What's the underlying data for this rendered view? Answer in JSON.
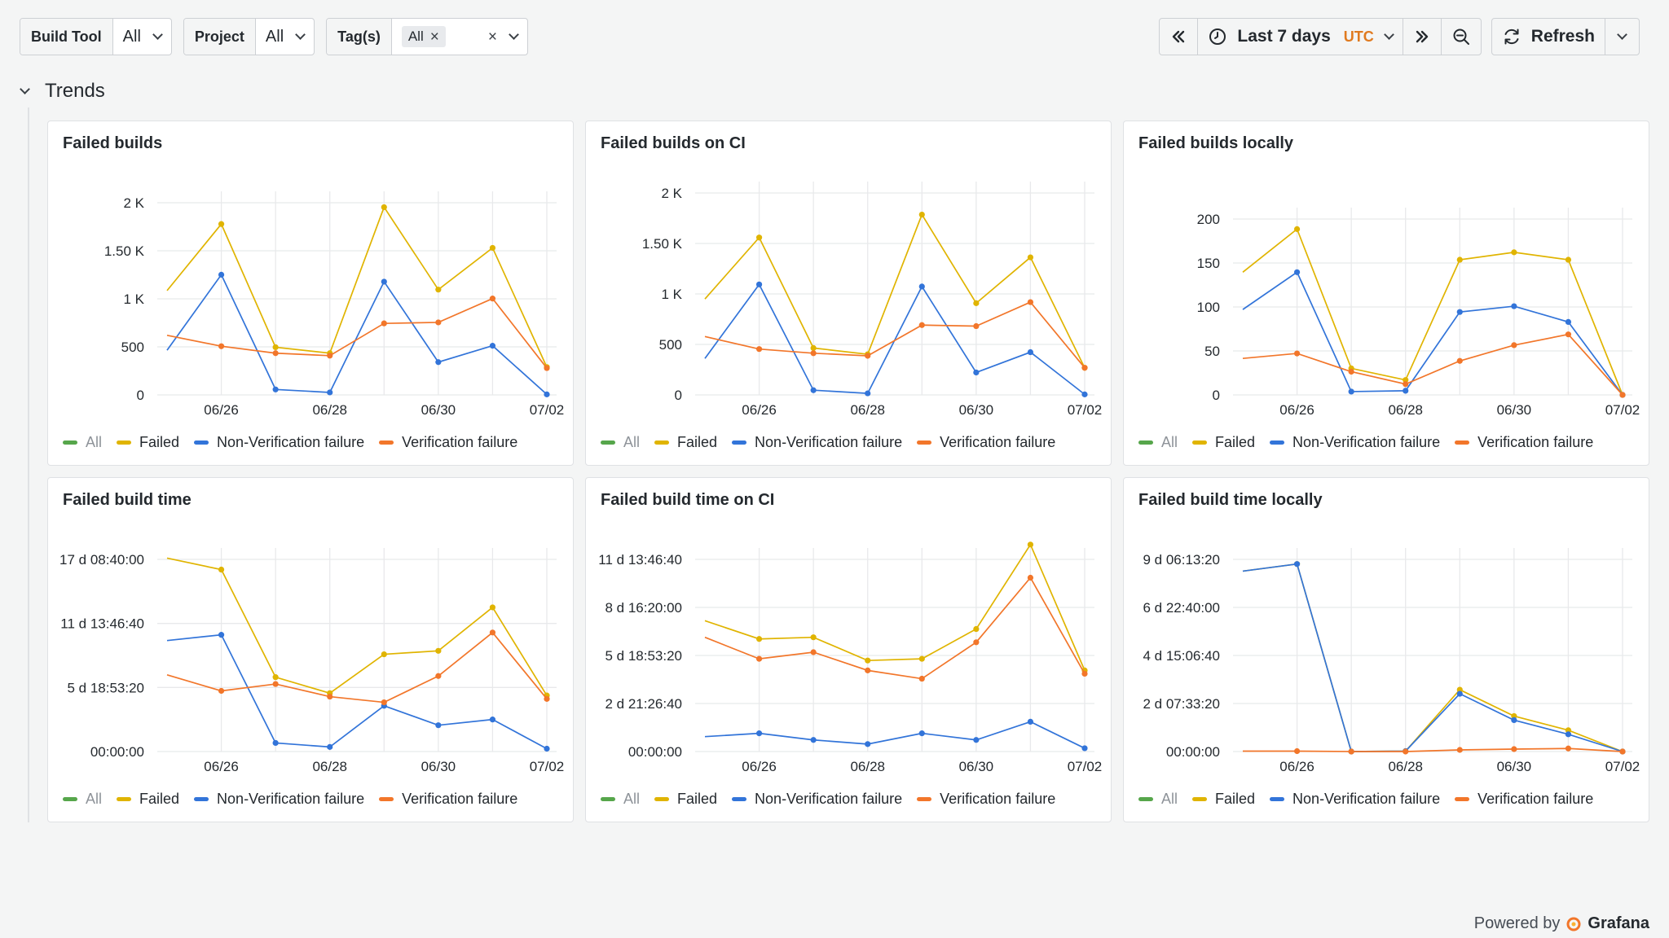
{
  "filters": [
    {
      "label": "Build Tool",
      "value": "All"
    },
    {
      "label": "Project",
      "value": "All"
    },
    {
      "label": "Tag(s)",
      "value": "All"
    }
  ],
  "timepicker": {
    "range": "Last 7 days",
    "tz": "UTC"
  },
  "refresh_label": "Refresh",
  "row_title": "Trends",
  "footer": {
    "powered": "Powered by",
    "brand": "Grafana"
  },
  "colors": {
    "all": "#56a64b",
    "failed": "#e0b400",
    "non_verification": "#3274d9",
    "verification": "#f2762a"
  },
  "legend": [
    "All",
    "Failed",
    "Non-Verification failure",
    "Verification failure"
  ],
  "chart_data": [
    {
      "type": "line",
      "title": "Failed builds",
      "x": [
        "06/25 12h",
        "06/26",
        "06/27",
        "06/28",
        "06/29",
        "06/30",
        "07/01",
        "07/02"
      ],
      "xticks": [
        "06/26",
        "06/28",
        "06/30",
        "07/02"
      ],
      "yticks": [
        "0",
        "500",
        "1 K",
        "1.50 K",
        "2 K"
      ],
      "ylim": [
        0,
        2000
      ],
      "series": [
        {
          "name": "Failed",
          "values": [
            1050,
            1720,
            480,
            420,
            1890,
            1060,
            1480,
            280
          ]
        },
        {
          "name": "Non-Verification failure",
          "values": [
            450,
            1210,
            55,
            25,
            1140,
            330,
            495,
            5
          ]
        },
        {
          "name": "Verification failure",
          "values": [
            600,
            490,
            420,
            395,
            720,
            730,
            970,
            270
          ]
        }
      ]
    },
    {
      "type": "line",
      "title": "Failed builds on CI",
      "x": [
        "06/25 12h",
        "06/26",
        "06/27",
        "06/28",
        "06/29",
        "06/30",
        "07/01",
        "07/02"
      ],
      "xticks": [
        "06/26",
        "06/28",
        "06/30",
        "07/02"
      ],
      "yticks": [
        "0",
        "500",
        "1 K",
        "1.50 K",
        "2 K"
      ],
      "ylim": [
        0,
        2000
      ],
      "series": [
        {
          "name": "Failed",
          "values": [
            920,
            1510,
            450,
            390,
            1730,
            880,
            1320,
            260
          ]
        },
        {
          "name": "Non-Verification failure",
          "values": [
            350,
            1060,
            45,
            15,
            1040,
            215,
            410,
            5
          ]
        },
        {
          "name": "Verification failure",
          "values": [
            560,
            440,
            400,
            375,
            670,
            660,
            890,
            260
          ]
        }
      ]
    },
    {
      "type": "line",
      "title": "Failed builds locally",
      "x": [
        "06/25 12h",
        "06/26",
        "06/27",
        "06/28",
        "06/29",
        "06/30",
        "07/01",
        "07/02"
      ],
      "xticks": [
        "06/26",
        "06/28",
        "06/30",
        "07/02"
      ],
      "yticks": [
        "0",
        "50",
        "100",
        "150",
        "200"
      ],
      "ylim": [
        0,
        220
      ],
      "series": [
        {
          "name": "Failed",
          "values": [
            148,
            200,
            32,
            18,
            163,
            172,
            163,
            0
          ]
        },
        {
          "name": "Non-Verification failure",
          "values": [
            103,
            148,
            4,
            5,
            100,
            107,
            88,
            0
          ]
        },
        {
          "name": "Verification failure",
          "values": [
            44,
            50,
            28,
            13,
            41,
            60,
            73,
            0
          ]
        }
      ]
    },
    {
      "type": "line",
      "title": "Failed build time",
      "x": [
        "06/25 12h",
        "06/26",
        "06/27",
        "06/28",
        "06/29",
        "06/30",
        "07/01",
        "07/02"
      ],
      "xticks": [
        "06/26",
        "06/28",
        "06/30",
        "07/02"
      ],
      "yticks": [
        "00:00:00",
        "5 d 18:53:20",
        "11 d 13:46:40",
        "17 d 08:40:00"
      ],
      "ylim": [
        0,
        17.3611
      ],
      "series": [
        {
          "name": "Failed",
          "values": [
            16.9,
            15.9,
            6.5,
            5.1,
            8.5,
            8.8,
            12.6,
            4.9
          ]
        },
        {
          "name": "Non-Verification failure",
          "values": [
            9.7,
            10.2,
            0.75,
            0.4,
            4.0,
            2.3,
            2.8,
            0.25
          ]
        },
        {
          "name": "Verification failure",
          "values": [
            6.7,
            5.3,
            5.9,
            4.8,
            4.3,
            6.6,
            10.4,
            4.6
          ]
        }
      ]
    },
    {
      "type": "line",
      "title": "Failed build time on CI",
      "x": [
        "06/25 12h",
        "06/26",
        "06/27",
        "06/28",
        "06/29",
        "06/30",
        "07/01",
        "07/02"
      ],
      "xticks": [
        "06/26",
        "06/28",
        "06/30",
        "07/02"
      ],
      "yticks": [
        "00:00:00",
        "2 d 21:26:40",
        "5 d 18:53:20",
        "8 d 16:20:00",
        "11 d 13:46:40"
      ],
      "ylim": [
        0,
        12.0
      ],
      "series": [
        {
          "name": "Failed",
          "values": [
            7.9,
            6.8,
            6.9,
            5.5,
            5.6,
            7.4,
            12.5,
            4.9
          ]
        },
        {
          "name": "Non-Verification failure",
          "values": [
            0.9,
            1.1,
            0.7,
            0.45,
            1.1,
            0.7,
            1.8,
            0.2
          ]
        },
        {
          "name": "Verification failure",
          "values": [
            6.9,
            5.6,
            6.0,
            4.9,
            4.4,
            6.6,
            10.5,
            4.7
          ]
        }
      ]
    },
    {
      "type": "line",
      "title": "Failed build time locally",
      "x": [
        "06/25 12h",
        "06/26",
        "06/27",
        "06/28",
        "06/29",
        "06/30",
        "07/01",
        "07/02"
      ],
      "xticks": [
        "06/26",
        "06/28",
        "06/30",
        "07/02"
      ],
      "yticks": [
        "00:00:00",
        "2 d 07:33:20",
        "4 d 15:06:40",
        "6 d 22:40:00",
        "9 d 06:13:20"
      ],
      "ylim": [
        0,
        9.8
      ],
      "series": [
        {
          "name": "Failed",
          "values": [
            8.9,
            9.25,
            0.0,
            0.02,
            3.05,
            1.75,
            1.05,
            0.0
          ]
        },
        {
          "name": "Non-Verification failure",
          "values": [
            8.9,
            9.25,
            0.0,
            0.02,
            2.85,
            1.55,
            0.85,
            0.0
          ]
        },
        {
          "name": "Verification failure",
          "values": [
            0.02,
            0.02,
            0.0,
            0.0,
            0.08,
            0.12,
            0.15,
            0.0
          ]
        }
      ]
    }
  ]
}
